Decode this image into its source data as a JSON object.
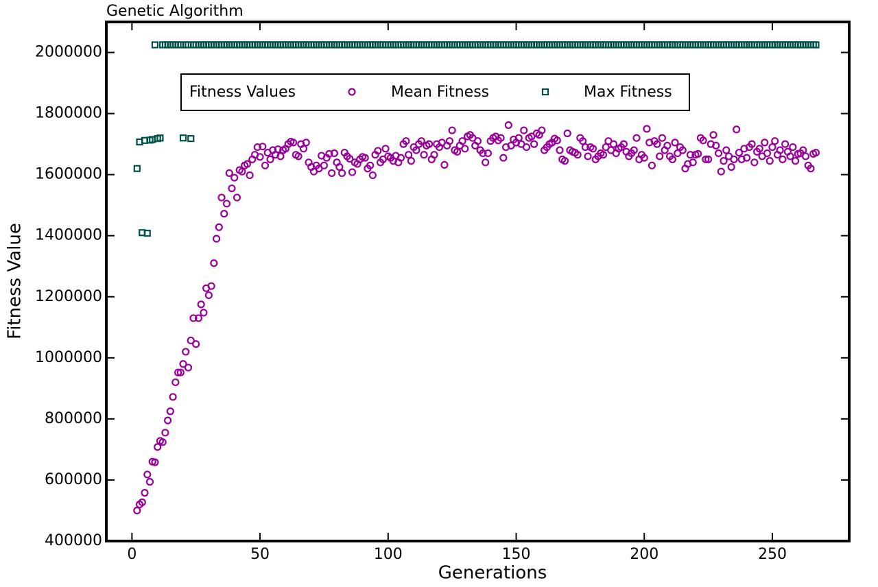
{
  "chart_data": {
    "type": "scatter",
    "title": "Genetic Algorithm",
    "xlabel": "Generations",
    "ylabel": "Fitness Value",
    "legend_title": "Fitness Values",
    "legend": "upper center",
    "xlim": [
      -10,
      280
    ],
    "ylim": [
      400000,
      2100000
    ],
    "xticks": [
      0,
      50,
      100,
      150,
      200,
      250
    ],
    "yticks": [
      400000,
      600000,
      800000,
      1000000,
      1200000,
      1400000,
      1600000,
      1800000,
      2000000
    ],
    "x": [
      2,
      3,
      4,
      5,
      6,
      7,
      8,
      9,
      10,
      11,
      12,
      13,
      14,
      15,
      16,
      17,
      18,
      19,
      20,
      21,
      22,
      23,
      24,
      25,
      26,
      27,
      28,
      29,
      30,
      31,
      32,
      33,
      34,
      35,
      36,
      37,
      38,
      39,
      40,
      41,
      42,
      43,
      44,
      45,
      46,
      47,
      48,
      49,
      50,
      51,
      52,
      53,
      54,
      55,
      56,
      57,
      58,
      59,
      60,
      61,
      62,
      63,
      64,
      65,
      66,
      67,
      68,
      69,
      70,
      71,
      72,
      73,
      74,
      75,
      76,
      77,
      78,
      79,
      80,
      81,
      82,
      83,
      84,
      85,
      86,
      87,
      88,
      89,
      90,
      91,
      92,
      93,
      94,
      95,
      96,
      97,
      98,
      99,
      100,
      101,
      102,
      103,
      104,
      105,
      106,
      107,
      108,
      109,
      110,
      111,
      112,
      113,
      114,
      115,
      116,
      117,
      118,
      119,
      120,
      121,
      122,
      123,
      124,
      125,
      126,
      127,
      128,
      129,
      130,
      131,
      132,
      133,
      134,
      135,
      136,
      137,
      138,
      139,
      140,
      141,
      142,
      143,
      144,
      145,
      146,
      147,
      148,
      149,
      150,
      151,
      152,
      153,
      154,
      155,
      156,
      157,
      158,
      159,
      160,
      161,
      162,
      163,
      164,
      165,
      166,
      167,
      168,
      169,
      170,
      171,
      172,
      173,
      174,
      175,
      176,
      177,
      178,
      179,
      180,
      181,
      182,
      183,
      184,
      185,
      186,
      187,
      188,
      189,
      190,
      191,
      192,
      193,
      194,
      195,
      196,
      197,
      198,
      199,
      200,
      201,
      202,
      203,
      204,
      205,
      206,
      207,
      208,
      209,
      210,
      211,
      212,
      213,
      214,
      215,
      216,
      217,
      218,
      219,
      220,
      221,
      222,
      223,
      224,
      225,
      226,
      227,
      228,
      229,
      230,
      231,
      232,
      233,
      234,
      235,
      236,
      237,
      238,
      239,
      240,
      241,
      242,
      243,
      244,
      245,
      246,
      247,
      248,
      249,
      250,
      251,
      252,
      253,
      254,
      255,
      256,
      257,
      258,
      259,
      260,
      261,
      262,
      263,
      264,
      265,
      266,
      267
    ],
    "series": [
      {
        "name": "Mean Fitness",
        "color": "#990099",
        "marker": "circle",
        "values": [
          500000,
          520000,
          527000,
          558000,
          618000,
          594000,
          660000,
          658000,
          708000,
          728000,
          724000,
          755000,
          795000,
          825000,
          872000,
          920000,
          952000,
          952000,
          980000,
          1020000,
          968000,
          1057000,
          1130000,
          1045000,
          1130000,
          1175000,
          1148000,
          1228000,
          1205000,
          1235000,
          1310000,
          1390000,
          1428000,
          1525000,
          1472000,
          1505000,
          1605000,
          1555000,
          1590000,
          1525000,
          1615000,
          1610000,
          1630000,
          1635000,
          1598000,
          1650000,
          1665000,
          1690000,
          1658000,
          1692000,
          1630000,
          1672000,
          1650000,
          1680000,
          1665000,
          1683000,
          1660000,
          1680000,
          1685000,
          1700000,
          1708000,
          1705000,
          1665000,
          1660000,
          1700000,
          1685000,
          1705000,
          1640000,
          1625000,
          1610000,
          1630000,
          1620000,
          1662000,
          1630000,
          1655000,
          1668000,
          1605000,
          1670000,
          1640000,
          1625000,
          1605000,
          1672000,
          1660000,
          1652000,
          1608000,
          1640000,
          1635000,
          1650000,
          1658000,
          1655000,
          1620000,
          1630000,
          1598000,
          1665000,
          1678000,
          1640000,
          1650000,
          1685000,
          1660000,
          1655000,
          1645000,
          1662000,
          1640000,
          1655000,
          1700000,
          1710000,
          1665000,
          1645000,
          1690000,
          1680000,
          1700000,
          1710000,
          1665000,
          1695000,
          1700000,
          1650000,
          1665000,
          1700000,
          1690000,
          1705000,
          1632000,
          1695000,
          1710000,
          1745000,
          1680000,
          1675000,
          1695000,
          1710000,
          1685000,
          1725000,
          1730000,
          1720000,
          1695000,
          1710000,
          1680000,
          1670000,
          1640000,
          1670000,
          1710000,
          1720000,
          1725000,
          1712000,
          1720000,
          1655000,
          1690000,
          1762000,
          1695000,
          1715000,
          1705000,
          1720000,
          1700000,
          1745000,
          1690000,
          1720000,
          1725000,
          1700000,
          1735000,
          1730000,
          1745000,
          1680000,
          1690000,
          1700000,
          1705000,
          1718000,
          1712000,
          1680000,
          1650000,
          1645000,
          1735000,
          1680000,
          1675000,
          1672000,
          1665000,
          1720000,
          1710000,
          1690000,
          1660000,
          1690000,
          1685000,
          1650000,
          1660000,
          1670000,
          1665000,
          1690000,
          1710000,
          1680000,
          1700000,
          1670000,
          1685000,
          1690000,
          1700000,
          1675000,
          1660000,
          1670000,
          1680000,
          1720000,
          1650000,
          1665000,
          1655000,
          1750000,
          1705000,
          1630000,
          1710000,
          1700000,
          1660000,
          1720000,
          1680000,
          1695000,
          1660000,
          1650000,
          1705000,
          1670000,
          1690000,
          1680000,
          1620000,
          1635000,
          1665000,
          1640000,
          1665000,
          1668000,
          1720000,
          1712000,
          1650000,
          1650000,
          1700000,
          1730000,
          1695000,
          1670000,
          1610000,
          1645000,
          1680000,
          1660000,
          1625000,
          1650000,
          1748000,
          1672000,
          1650000,
          1685000,
          1655000,
          1690000,
          1700000,
          1640000,
          1675000,
          1685000,
          1660000,
          1705000,
          1670000,
          1645000,
          1690000,
          1710000,
          1665000,
          1680000,
          1650000,
          1700000,
          1675000,
          1660000,
          1690000,
          1645000,
          1668000,
          1670000,
          1680000,
          1660000,
          1630000,
          1620000,
          1668000,
          1672000
        ]
      },
      {
        "name": "Max Fitness",
        "color": "#00504a",
        "marker": "square",
        "values": [
          1620000,
          1707000,
          1410000,
          1712000,
          1408000,
          1713000,
          1715000,
          2025000,
          1718000,
          1720000,
          2025000,
          2025000,
          2025000,
          2025000,
          2025000,
          2025000,
          2025000,
          2025000,
          1720000,
          2025000,
          2025000,
          1718000,
          2025000,
          2025000,
          2025000,
          2025000,
          2025000,
          2025000,
          2025000,
          2025000,
          2025000,
          2025000,
          2025000,
          2025000,
          2025000,
          2025000,
          2025000,
          2025000,
          2025000,
          2025000,
          2025000,
          2025000,
          2025000,
          2025000,
          2025000,
          2025000,
          2025000,
          2025000,
          2025000,
          2025000,
          2025000,
          2025000,
          2025000,
          2025000,
          2025000,
          2025000,
          2025000,
          2025000,
          2025000,
          2025000,
          2025000,
          2025000,
          2025000,
          2025000,
          2025000,
          2025000,
          2025000,
          2025000,
          2025000,
          2025000,
          2025000,
          2025000,
          2025000,
          2025000,
          2025000,
          2025000,
          2025000,
          2025000,
          2025000,
          2025000,
          2025000,
          2025000,
          2025000,
          2025000,
          2025000,
          2025000,
          2025000,
          2025000,
          2025000,
          2025000,
          2025000,
          2025000,
          2025000,
          2025000,
          2025000,
          2025000,
          2025000,
          2025000,
          2025000,
          2025000,
          2025000,
          2025000,
          2025000,
          2025000,
          2025000,
          2025000,
          2025000,
          2025000,
          2025000,
          2025000,
          2025000,
          2025000,
          2025000,
          2025000,
          2025000,
          2025000,
          2025000,
          2025000,
          2025000,
          2025000,
          2025000,
          2025000,
          2025000,
          2025000,
          2025000,
          2025000,
          2025000,
          2025000,
          2025000,
          2025000,
          2025000,
          2025000,
          2025000,
          2025000,
          2025000,
          2025000,
          2025000,
          2025000,
          2025000,
          2025000,
          2025000,
          2025000,
          2025000,
          2025000,
          2025000,
          2025000,
          2025000,
          2025000,
          2025000,
          2025000,
          2025000,
          2025000,
          2025000,
          2025000,
          2025000,
          2025000,
          2025000,
          2025000,
          2025000,
          2025000,
          2025000,
          2025000,
          2025000,
          2025000,
          2025000,
          2025000,
          2025000,
          2025000,
          2025000,
          2025000,
          2025000,
          2025000,
          2025000,
          2025000,
          2025000,
          2025000,
          2025000,
          2025000,
          2025000,
          2025000,
          2025000,
          2025000,
          2025000,
          2025000,
          2025000,
          2025000,
          2025000,
          2025000,
          2025000,
          2025000,
          2025000,
          2025000,
          2025000,
          2025000,
          2025000,
          2025000,
          2025000,
          2025000,
          2025000,
          2025000,
          2025000,
          2025000,
          2025000,
          2025000,
          2025000,
          2025000,
          2025000,
          2025000,
          2025000,
          2025000,
          2025000,
          2025000,
          2025000,
          2025000,
          2025000,
          2025000,
          2025000,
          2025000,
          2025000,
          2025000,
          2025000,
          2025000,
          2025000,
          2025000,
          2025000,
          2025000,
          2025000,
          2025000,
          2025000,
          2025000,
          2025000,
          2025000,
          2025000,
          2025000,
          2025000,
          2025000,
          2025000,
          2025000,
          2025000,
          2025000,
          2025000,
          2025000,
          2025000,
          2025000,
          2025000,
          2025000,
          2025000,
          2025000,
          2025000,
          2025000,
          2025000,
          2025000,
          2025000,
          2025000,
          2025000,
          2025000,
          2025000,
          2025000,
          2025000,
          2025000,
          2025000,
          2025000,
          2025000,
          2025000,
          2025000,
          2025000
        ]
      }
    ]
  }
}
